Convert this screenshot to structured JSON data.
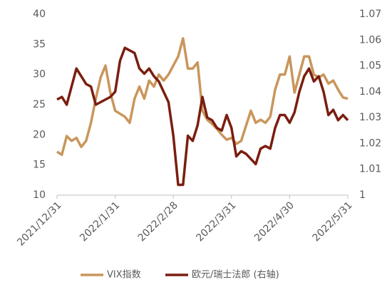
{
  "chart_data": {
    "type": "line",
    "categories": [
      "2021/12/31",
      null,
      null,
      null,
      null,
      null,
      null,
      null,
      null,
      null,
      null,
      null,
      "2022/1/31",
      null,
      null,
      null,
      null,
      null,
      null,
      null,
      null,
      null,
      null,
      null,
      "2022/2/28",
      null,
      null,
      null,
      null,
      null,
      null,
      null,
      null,
      null,
      null,
      null,
      "2022/3/31",
      null,
      null,
      null,
      null,
      null,
      null,
      null,
      null,
      null,
      null,
      null,
      "2022/4/30",
      null,
      null,
      null,
      null,
      null,
      null,
      null,
      null,
      null,
      null,
      null,
      "2022/5/31"
    ],
    "series": [
      {
        "name": "VIX指数",
        "color": "#c9965b",
        "values": [
          17.2,
          16.7,
          19.8,
          19,
          19.5,
          18,
          19,
          22,
          26,
          29.5,
          31.5,
          27,
          24,
          23.5,
          23,
          22,
          26,
          28,
          26,
          29,
          28,
          30,
          29,
          30,
          31.5,
          33,
          36,
          31,
          31,
          32,
          24,
          22.5,
          21.8,
          21,
          20,
          19.2,
          19.5,
          18.5,
          19,
          21.5,
          24,
          22,
          22.5,
          22,
          23,
          27.5,
          30,
          30,
          33,
          27,
          30,
          33,
          33,
          30,
          29.5,
          30,
          28.5,
          29,
          27.5,
          26.2,
          26
        ]
      },
      {
        "name": "欧元/瑞士法郎 (右轴)",
        "color": "#7a1e0f",
        "axis": "y2",
        "values": [
          1.037,
          1.038,
          1.035,
          1.042,
          1.049,
          1.046,
          1.043,
          1.042,
          1.035,
          1.036,
          1.037,
          1.038,
          1.04,
          1.052,
          1.057,
          1.056,
          1.055,
          1.049,
          1.047,
          1.049,
          1.046,
          1.044,
          1.04,
          1.036,
          1.023,
          1.004,
          1.004,
          1.023,
          1.021,
          1.027,
          1.038,
          1.03,
          1.029,
          1.026,
          1.025,
          1.031,
          1.026,
          1.015,
          1.017,
          1.016,
          1.014,
          1.012,
          1.018,
          1.019,
          1.018,
          1.026,
          1.031,
          1.031,
          1.028,
          1.032,
          1.04,
          1.046,
          1.049,
          1.044,
          1.046,
          1.04,
          1.031,
          1.033,
          1.029,
          1.031,
          1.029
        ]
      }
    ],
    "ylim": [
      10,
      40
    ],
    "yticks": [
      10,
      15,
      20,
      25,
      30,
      35,
      40
    ],
    "y2lim": [
      1,
      1.07
    ],
    "y2ticks": [
      1,
      1.01,
      1.02,
      1.03,
      1.04,
      1.05,
      1.06,
      1.07
    ],
    "grid": false,
    "legend": "bottom"
  }
}
